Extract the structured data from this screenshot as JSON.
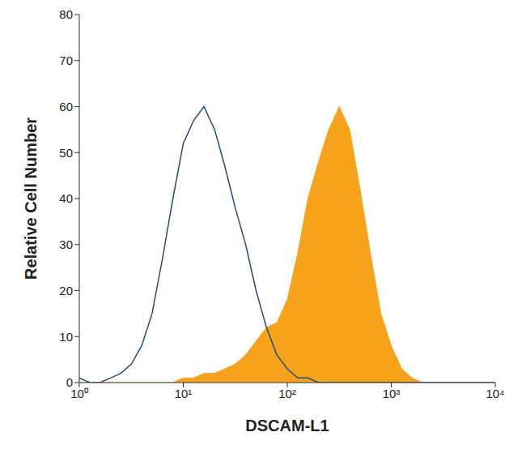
{
  "chart_data": {
    "type": "area",
    "x_label": "DSCAM-L1",
    "y_label": "Relative Cell Number",
    "log": "x",
    "xlim": [
      1,
      10000
    ],
    "xticks": [
      {
        "value": 1,
        "label": "10⁰"
      },
      {
        "value": 10,
        "label": "10¹"
      },
      {
        "value": 100,
        "label": "10²"
      },
      {
        "value": 1000,
        "label": "10³"
      },
      {
        "value": 10000,
        "label": "10⁴"
      }
    ],
    "ylim": [
      0,
      80
    ],
    "yticks": [
      0,
      10,
      20,
      30,
      40,
      50,
      60,
      70,
      80
    ],
    "x": [
      1,
      1.26,
      1.58,
      2,
      2.51,
      3.16,
      3.98,
      5.01,
      6.31,
      7.94,
      10,
      12.6,
      15.8,
      20,
      25.1,
      31.6,
      39.8,
      50.1,
      63.1,
      79.4,
      100,
      126,
      158,
      200,
      251,
      316,
      398,
      501,
      631,
      794,
      1000,
      1259,
      1585,
      1995,
      2512,
      3162,
      3981,
      5012,
      6310,
      7943,
      10000
    ],
    "series": [
      {
        "type": "area",
        "color": "#f7a21b",
        "values": [
          0,
          0,
          0,
          0,
          0,
          0,
          0,
          0,
          0,
          0,
          1,
          1,
          2,
          2,
          3,
          4,
          6,
          9,
          12,
          13,
          18,
          28,
          40,
          48,
          55,
          60,
          55,
          42,
          28,
          15,
          8,
          3,
          1,
          0,
          0,
          0,
          0,
          0,
          0,
          0,
          0
        ]
      },
      {
        "type": "line",
        "color": "#1f4f7f",
        "values": [
          1,
          0,
          0,
          1,
          2,
          4,
          8,
          15,
          27,
          40,
          52,
          57,
          60,
          55,
          47,
          38,
          30,
          20,
          12,
          6,
          3,
          1,
          1,
          0,
          0,
          0,
          0,
          0,
          0,
          0,
          0,
          0,
          0,
          0,
          0,
          0,
          0,
          0,
          0,
          0,
          0
        ]
      }
    ]
  }
}
